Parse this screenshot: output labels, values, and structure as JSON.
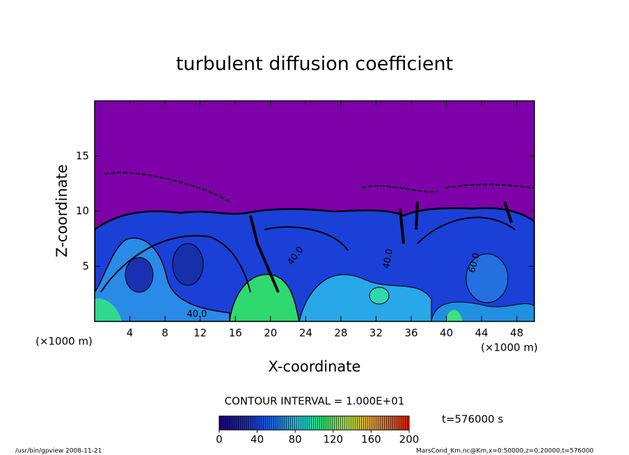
{
  "chart_data": {
    "type": "contour",
    "title": "turbulent diffusion coefficient",
    "xlabel": "X-coordinate",
    "ylabel": "Z-coordinate",
    "xunit": "(×1000 m)",
    "yunit": "(×1000 m)",
    "xlim": [
      0,
      50
    ],
    "xticks": [
      4,
      8,
      12,
      16,
      20,
      24,
      28,
      32,
      36,
      40,
      44,
      48
    ],
    "ylim": [
      0,
      20
    ],
    "yticks": [
      5,
      10,
      15
    ],
    "contour_labels": [
      "40.0",
      "40.0",
      "60.0",
      "40.0"
    ],
    "colorbar": {
      "title": "CONTOUR INTERVAL = 1.000E+01",
      "lim": [
        0,
        200
      ],
      "ticks": [
        0,
        40,
        80,
        120,
        160,
        200
      ]
    },
    "time": "t=576000 s",
    "footer_left": "/usr/bin/gpview  2008-11-21",
    "footer_right": "MarsCond_Km.nc@Km,x=0:50000,z=0:20000,t=576000"
  }
}
